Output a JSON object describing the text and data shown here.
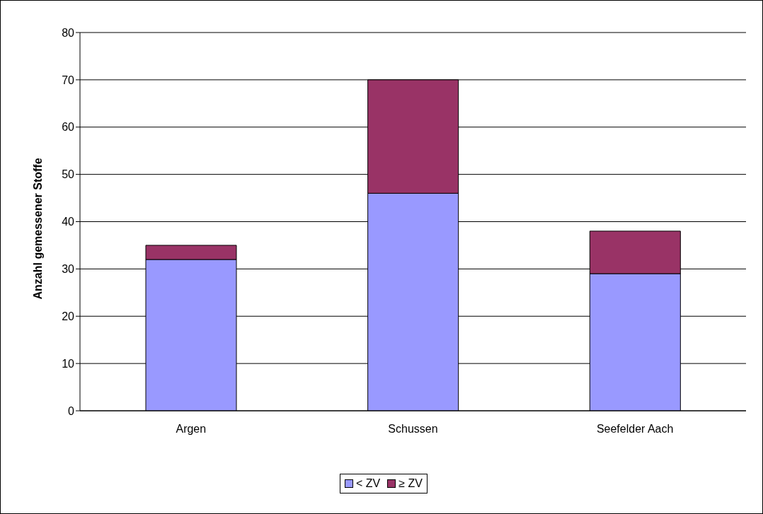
{
  "chart_data": {
    "type": "bar",
    "stacked": true,
    "ylabel": "Anzahl gemessener Stoffe",
    "categories": [
      "Argen",
      "Schussen",
      "Seefelder Aach"
    ],
    "series": [
      {
        "name": "< ZV",
        "color": "#9999ff",
        "values": [
          32,
          46,
          29
        ]
      },
      {
        "name": "≥ ZV",
        "color": "#993366",
        "values": [
          3,
          24,
          9
        ]
      }
    ],
    "ylim": [
      0,
      80
    ],
    "yticks": [
      0,
      10,
      20,
      30,
      40,
      50,
      60,
      70,
      80
    ],
    "grid": "y",
    "legend": "bottom"
  }
}
